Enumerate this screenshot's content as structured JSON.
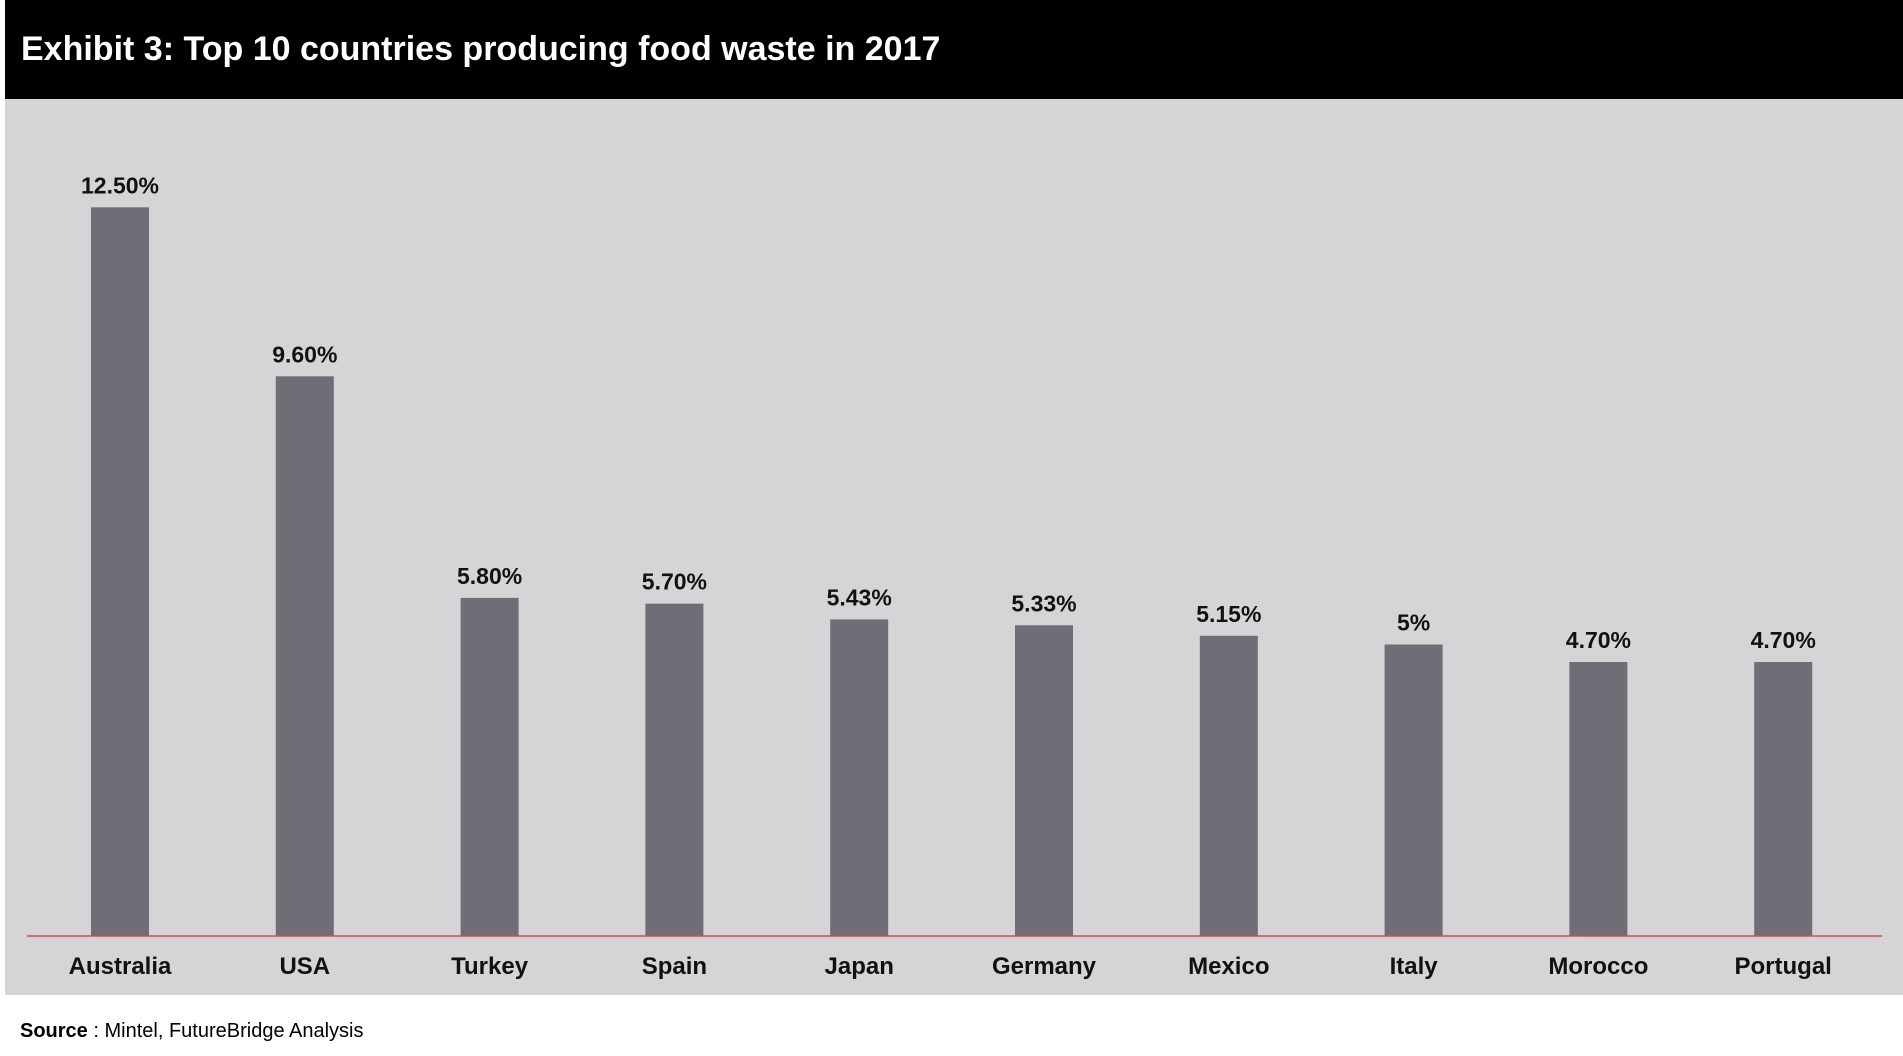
{
  "header": {
    "title": "Exhibit 3: Top 10 countries producing food waste in 2017"
  },
  "footer": {
    "source_label": "Source",
    "source_text": " : Mintel, FutureBridge Analysis"
  },
  "colors": {
    "title_bg": "#000000",
    "title_fg": "#ffffff",
    "chart_bg": "#d5d5d7",
    "bar": "#6f6e76",
    "baseline": "#d94a4a"
  },
  "chart_data": {
    "type": "bar",
    "title": "Exhibit 3: Top 10 countries producing food waste in 2017",
    "xlabel": "",
    "ylabel": "",
    "categories": [
      "Australia",
      "USA",
      "Turkey",
      "Spain",
      "Japan",
      "Germany",
      "Mexico",
      "Italy",
      "Morocco",
      "Portugal"
    ],
    "values": [
      12.5,
      9.6,
      5.8,
      5.7,
      5.43,
      5.33,
      5.15,
      5.0,
      4.7,
      4.7
    ],
    "value_labels": [
      "12.50%",
      "9.60%",
      "5.80%",
      "5.70%",
      "5.43%",
      "5.33%",
      "5.15%",
      "5%",
      "4.70%",
      "4.70%"
    ],
    "ylim": [
      0,
      14
    ],
    "grid": false,
    "legend": "none"
  }
}
